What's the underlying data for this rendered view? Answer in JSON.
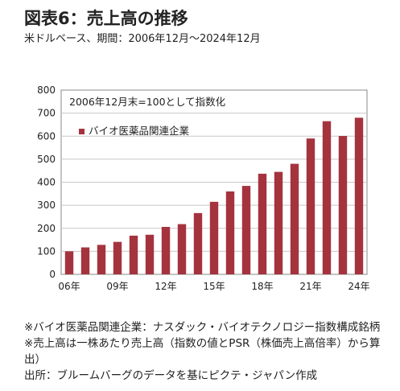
{
  "header": {
    "title": "図表6：売上高の推移",
    "subtitle": "米ドルベース、期間：2006年12月～2024年12月"
  },
  "chart_data": {
    "type": "bar",
    "annotation": "2006年12月末=100として指数化",
    "series": [
      {
        "name": "バイオ医薬品関連企業",
        "color": "#a5333e",
        "values": [
          100,
          117,
          128,
          141,
          168,
          172,
          206,
          218,
          266,
          315,
          360,
          384,
          437,
          445,
          480,
          590,
          665,
          601,
          680
        ]
      }
    ],
    "x_tick_labels": [
      "06年",
      "09年",
      "12年",
      "15年",
      "18年",
      "21年",
      "24年"
    ],
    "x_tick_indices": [
      0,
      3,
      6,
      9,
      12,
      15,
      18
    ],
    "y_ticks": [
      0,
      100,
      200,
      300,
      400,
      500,
      600,
      700,
      800
    ],
    "ylim": [
      0,
      800
    ],
    "grid": true,
    "legend_position": "top-left"
  },
  "notes": [
    "※バイオ医薬品関連企業：ナスダック・バイオテクノロジー指数構成銘柄　※売上高は一株あたり売上高（指数の値とPSR（株価売上高倍率）から算出）",
    "出所：ブルームバーグのデータを基にピクテ・ジャパン作成"
  ]
}
